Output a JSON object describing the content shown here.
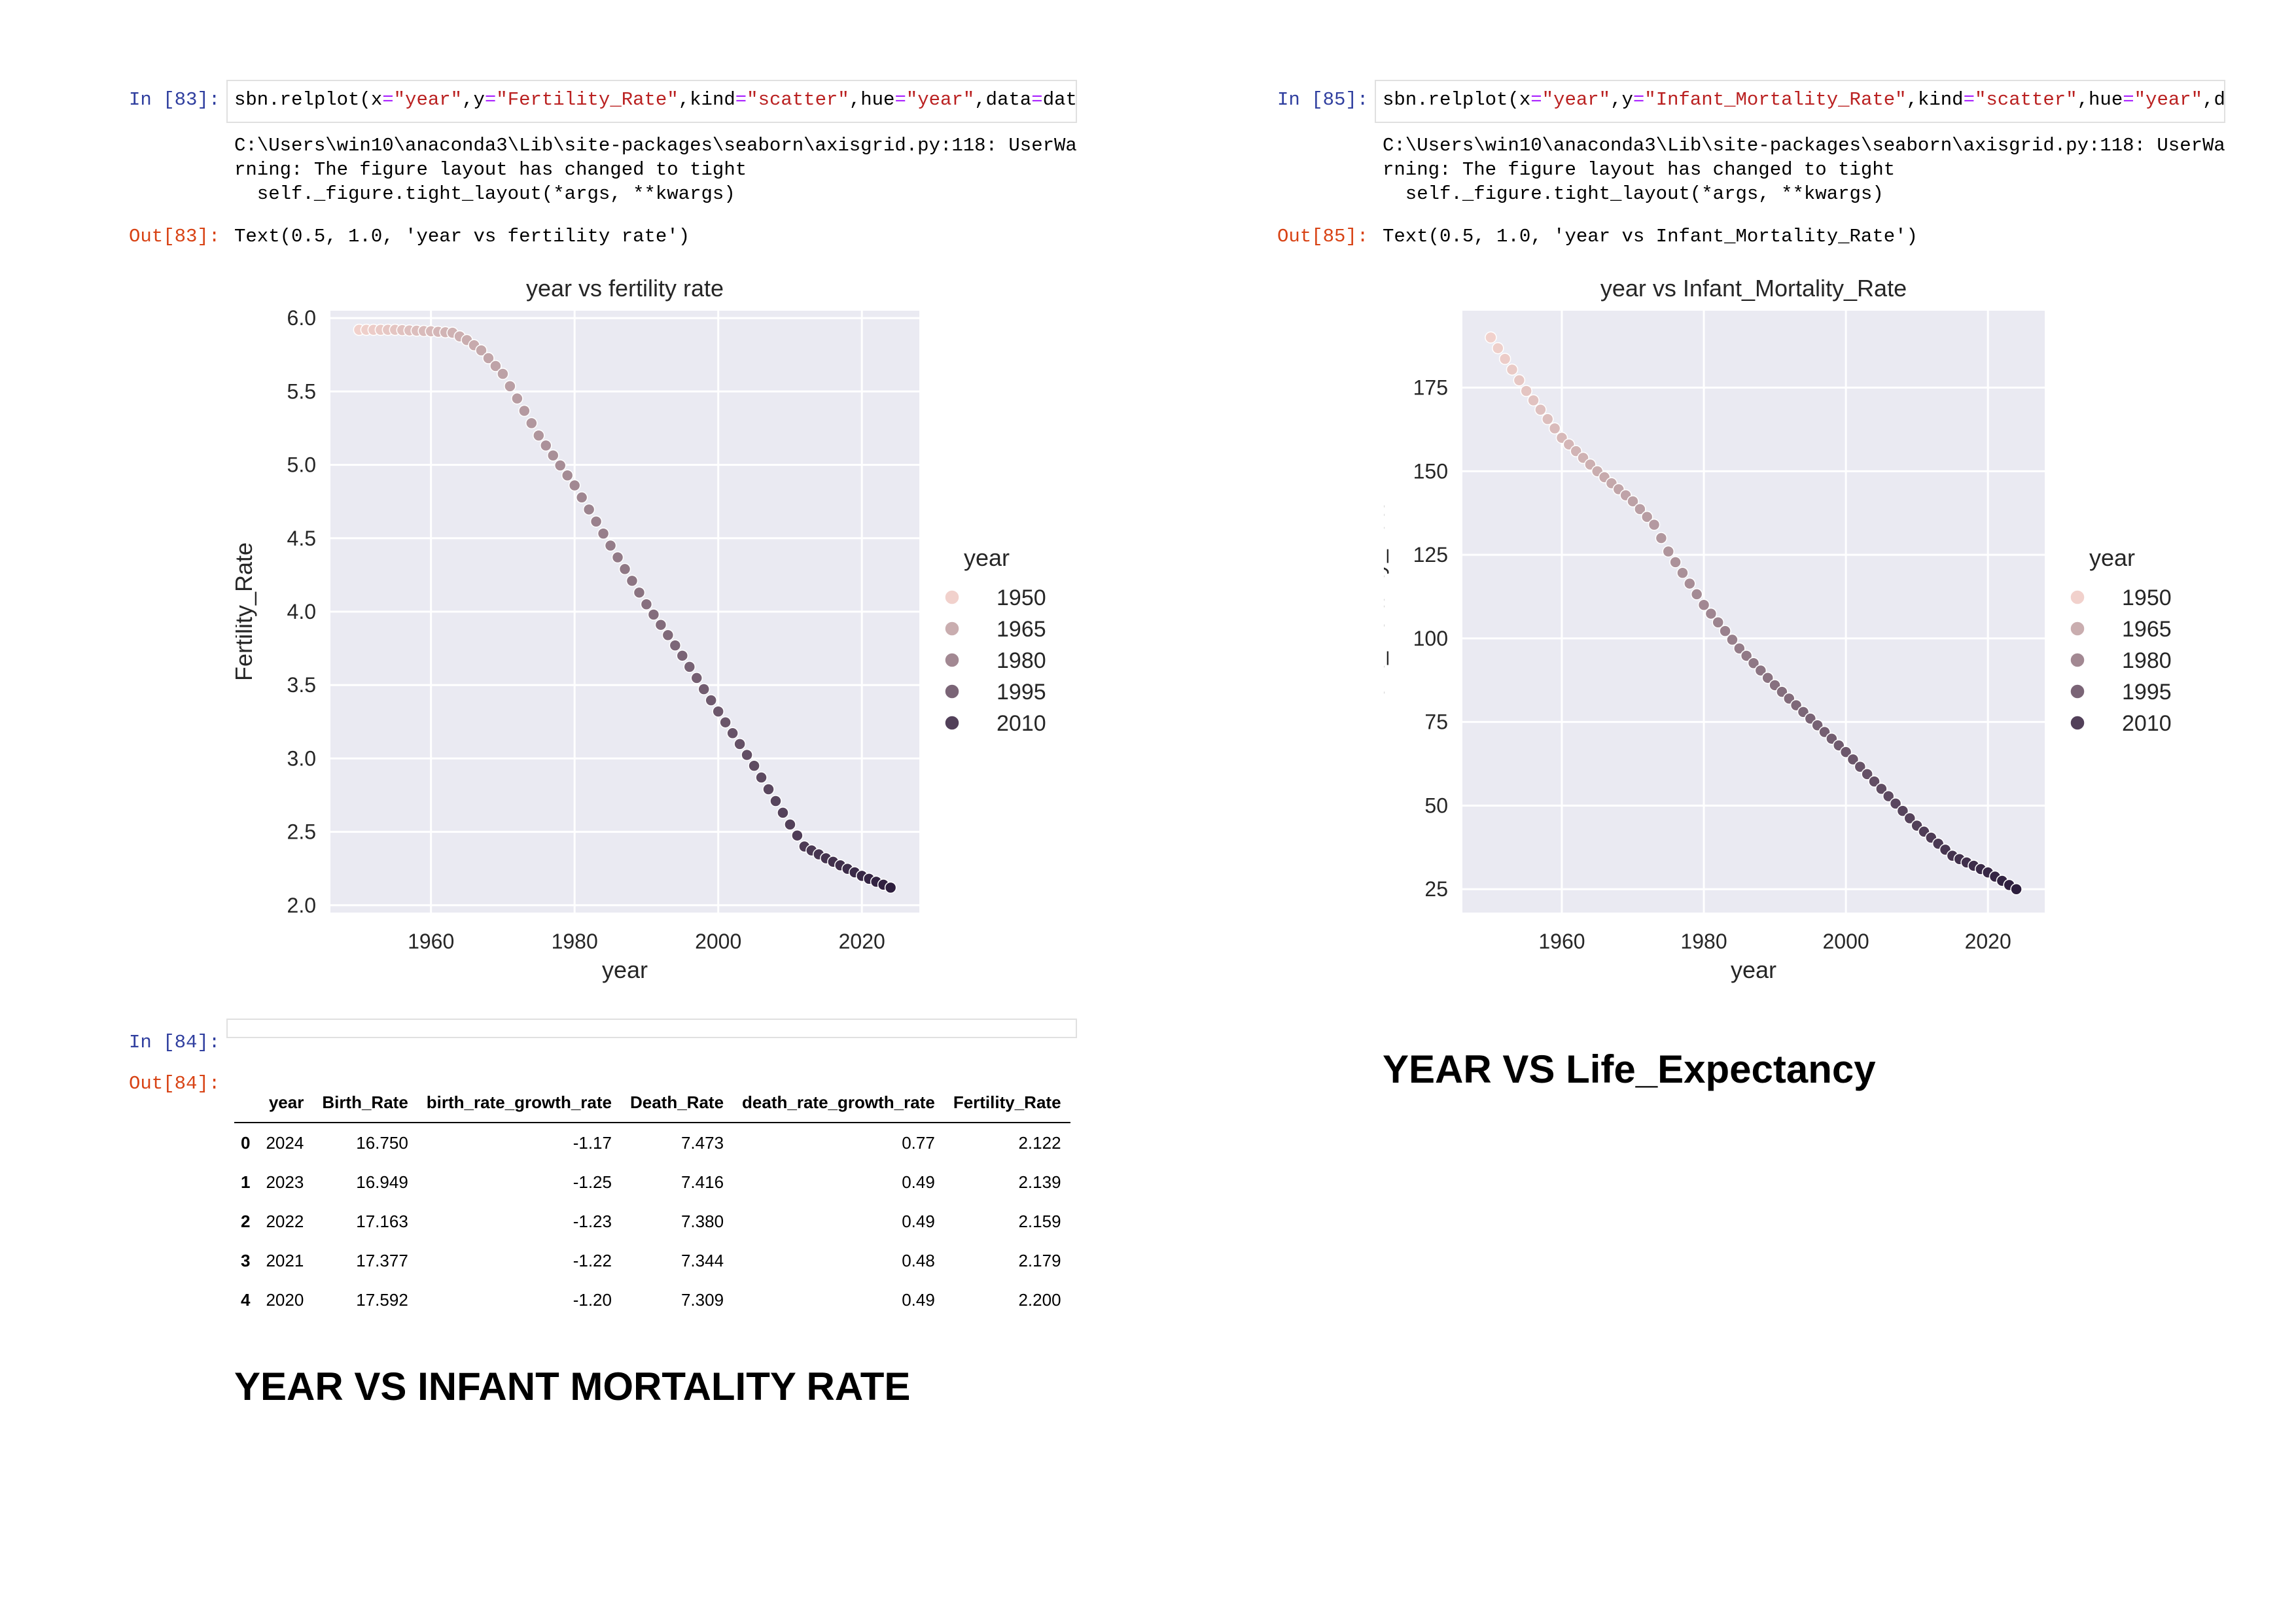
{
  "cells": {
    "c83": {
      "in_prompt": "In [83]:",
      "code_line1": [
        {
          "t": "sbn.relplot(x",
          "c": ""
        },
        {
          "t": "=",
          "c": "op"
        },
        {
          "t": "\"year\"",
          "c": "str"
        },
        {
          "t": ",y",
          "c": ""
        },
        {
          "t": "=",
          "c": "op"
        },
        {
          "t": "\"Fertility_Rate\"",
          "c": "str"
        },
        {
          "t": ",kind",
          "c": ""
        },
        {
          "t": "=",
          "c": "op"
        },
        {
          "t": "\"scatter\"",
          "c": "str"
        },
        {
          "t": ",hue",
          "c": ""
        },
        {
          "t": "=",
          "c": "op"
        },
        {
          "t": "\"year\"",
          "c": "str"
        },
        {
          "t": ",data",
          "c": ""
        },
        {
          "t": "=",
          "c": "op"
        },
        {
          "t": "data,",
          "c": ""
        }
      ],
      "stderr": "C:\\Users\\win10\\anaconda3\\Lib\\site-packages\\seaborn\\axisgrid.py:118: UserWa\nrning: The figure layout has changed to tight\n  self._figure.tight_layout(*args, **kwargs)",
      "out_prompt": "Out[83]:",
      "out_text": "Text(0.5, 1.0, 'year vs fertility rate')"
    },
    "c84": {
      "in_prompt": "In [84]:",
      "out_prompt": "Out[84]:",
      "table": {
        "columns": [
          "",
          "year",
          "Birth_Rate",
          "birth_rate_growth_rate",
          "Death_Rate",
          "death_rate_growth_rate",
          "Fertility_Rate"
        ],
        "rows": [
          [
            "0",
            "2024",
            "16.750",
            "-1.17",
            "7.473",
            "0.77",
            "2.122"
          ],
          [
            "1",
            "2023",
            "16.949",
            "-1.25",
            "7.416",
            "0.49",
            "2.139"
          ],
          [
            "2",
            "2022",
            "17.163",
            "-1.23",
            "7.380",
            "0.49",
            "2.159"
          ],
          [
            "3",
            "2021",
            "17.377",
            "-1.22",
            "7.344",
            "0.48",
            "2.179"
          ],
          [
            "4",
            "2020",
            "17.592",
            "-1.20",
            "7.309",
            "0.49",
            "2.200"
          ]
        ]
      }
    },
    "c85": {
      "in_prompt": "In [85]:",
      "code_line1": [
        {
          "t": "sbn.relplot(x",
          "c": ""
        },
        {
          "t": "=",
          "c": "op"
        },
        {
          "t": "\"year\"",
          "c": "str"
        },
        {
          "t": ",y",
          "c": ""
        },
        {
          "t": "=",
          "c": "op"
        },
        {
          "t": "\"Infant_Mortality_Rate\"",
          "c": "str"
        },
        {
          "t": ",kind",
          "c": ""
        },
        {
          "t": "=",
          "c": "op"
        },
        {
          "t": "\"scatter\"",
          "c": "str"
        },
        {
          "t": ",hue",
          "c": ""
        },
        {
          "t": "=",
          "c": "op"
        },
        {
          "t": "\"year\"",
          "c": "str"
        },
        {
          "t": ",da",
          "c": ""
        }
      ],
      "stderr": "C:\\Users\\win10\\anaconda3\\Lib\\site-packages\\seaborn\\axisgrid.py:118: UserWa\nrning: The figure layout has changed to tight\n  self._figure.tight_layout(*args, **kwargs)",
      "out_prompt": "Out[85]:",
      "out_text": "Text(0.5, 1.0, 'year vs Infant_Mortality_Rate')"
    }
  },
  "headings": {
    "infant": "YEAR VS INFANT MORTALITY RATE",
    "life": "YEAR VS Life_Expectancy"
  },
  "colors": {
    "plot_bg": "#eaeaf2",
    "grid": "#ffffff",
    "hue_light": "#f1d1cc",
    "hue_dark": "#2d1e3e"
  },
  "chart_data": [
    {
      "type": "scatter",
      "title": "year vs fertility rate",
      "xlabel": "year",
      "ylabel": "Fertility_Rate",
      "xlim": [
        1946,
        2028
      ],
      "ylim": [
        1.95,
        6.05
      ],
      "xticks": [
        1960,
        1980,
        2000,
        2020
      ],
      "yticks": [
        2.0,
        2.5,
        3.0,
        3.5,
        4.0,
        4.5,
        5.0,
        5.5,
        6.0
      ],
      "ytick_format": "1",
      "grid": true,
      "legend": {
        "title": "year",
        "placement": "right",
        "entries": [
          1950,
          1965,
          1980,
          1995,
          2010
        ]
      },
      "hue": "year",
      "anchors_x": [
        1950,
        1955,
        1960,
        1963,
        1965,
        1967,
        1970,
        1975,
        1980,
        1985,
        1990,
        1995,
        2000,
        2005,
        2010,
        2012,
        2015,
        2020,
        2024
      ],
      "anchors_y": [
        5.92,
        5.92,
        5.91,
        5.9,
        5.85,
        5.78,
        5.62,
        5.2,
        4.86,
        4.45,
        4.05,
        3.7,
        3.32,
        2.95,
        2.55,
        2.4,
        2.32,
        2.2,
        2.12
      ]
    },
    {
      "type": "scatter",
      "title": "year vs Infant_Mortality_Rate",
      "xlabel": "year",
      "ylabel": "Infant_Mortality_Rate",
      "xlim": [
        1946,
        2028
      ],
      "ylim": [
        18,
        198
      ],
      "xticks": [
        1960,
        1980,
        2000,
        2020
      ],
      "yticks": [
        25,
        50,
        75,
        100,
        125,
        150,
        175
      ],
      "ytick_format": "0",
      "grid": true,
      "legend": {
        "title": "year",
        "placement": "right",
        "entries": [
          1950,
          1965,
          1980,
          1995,
          2010
        ]
      },
      "hue": "year",
      "anchors_x": [
        1950,
        1955,
        1960,
        1965,
        1970,
        1973,
        1975,
        1980,
        1985,
        1990,
        1995,
        2000,
        2005,
        2010,
        2015,
        2020,
        2024
      ],
      "anchors_y": [
        190,
        174,
        160,
        150,
        141,
        134,
        126,
        110,
        97,
        86,
        76,
        66,
        55,
        44,
        35,
        30,
        25
      ]
    }
  ]
}
